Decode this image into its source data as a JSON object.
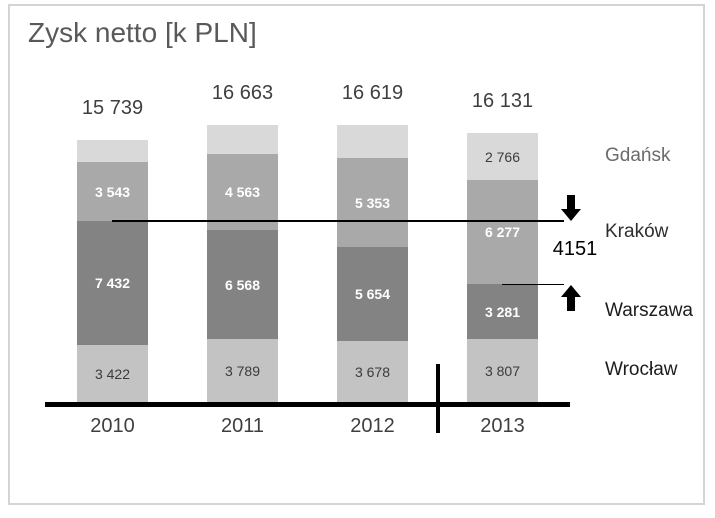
{
  "chart_data": {
    "type": "bar",
    "stacked": true,
    "title": "Zysk netto [k PLN]",
    "xlabel": "",
    "ylabel": "",
    "grid": false,
    "legend_position": "right",
    "categories": [
      "2010",
      "2011",
      "2012",
      "2013"
    ],
    "totals": [
      "15 739",
      "16 663",
      "16 619",
      "16 131"
    ],
    "series": [
      {
        "name": "Wrocław",
        "color": "#c3c3c3",
        "label_color": "#3b3b3b",
        "legend_color": "#1c1c1c",
        "values": [
          3422,
          3789,
          3678,
          3807
        ],
        "labels": [
          "3 422",
          "3 789",
          "3 678",
          "3 807"
        ]
      },
      {
        "name": "Warszawa",
        "color": "#838383",
        "label_color": "#ffffff",
        "legend_color": "#1c1c1c",
        "values": [
          7432,
          6568,
          5654,
          3281
        ],
        "labels": [
          "7 432",
          "6 568",
          "5 654",
          "3 281"
        ]
      },
      {
        "name": "Kraków",
        "color": "#a9a9a9",
        "label_color": "#ffffff",
        "legend_color": "#2e2e2e",
        "values": [
          3543,
          4563,
          5353,
          6277
        ],
        "labels": [
          "3 543",
          "4 563",
          "5 353",
          "6 277"
        ]
      },
      {
        "name": "Gdańsk",
        "color": "#d9d9d9",
        "label_color": "#3b3b3b",
        "legend_color": "#6b6b6b",
        "values": [
          1342,
          1743,
          1934,
          2766
        ],
        "labels": [
          "",
          "",
          "",
          "2 766"
        ]
      }
    ],
    "axis_color": "#000000",
    "frame_border_color": "#d4d4d4",
    "title_color": "#595959"
  },
  "annotation": {
    "label": "4151",
    "series": "Warszawa",
    "from_year": "2010",
    "to_year": "2013"
  }
}
